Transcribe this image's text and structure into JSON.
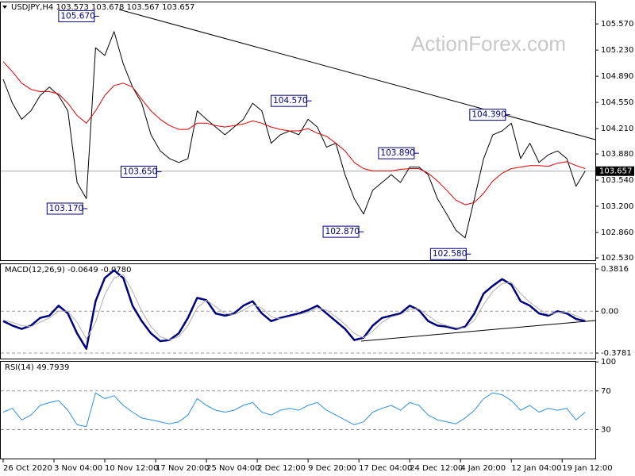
{
  "chart_data": [
    {
      "type": "line",
      "title": "USDJPY,H4 103.573 103.678 103.567 103.657",
      "watermark": "ActionForex.com",
      "x": [
        0,
        8,
        16,
        24,
        32,
        40,
        48,
        56,
        64,
        72,
        80,
        88,
        96,
        104,
        112,
        120,
        128,
        136,
        144,
        152,
        160,
        168,
        176,
        184,
        192,
        200,
        208,
        216,
        224,
        232,
        240,
        248,
        256,
        264,
        272,
        280,
        288,
        296,
        304,
        312,
        320,
        328,
        336,
        344,
        352,
        360,
        368,
        376,
        384,
        392,
        400,
        408,
        416,
        424,
        432,
        440,
        448,
        456,
        464,
        472,
        480,
        488,
        496,
        504
      ],
      "xlim": [
        -2.75,
        512.7
      ],
      "xticks": [
        {
          "value": 0,
          "label": "26 Oct 2020"
        },
        {
          "value": 44,
          "label": "3 Nov 04:00"
        },
        {
          "value": 88,
          "label": "10 Nov 12:00"
        },
        {
          "value": 132,
          "label": "17 Nov 20:00"
        },
        {
          "value": 176,
          "label": "25 Nov 04:00"
        },
        {
          "value": 220,
          "label": "2 Dec 12:00"
        },
        {
          "value": 264,
          "label": "9 Dec 20:00"
        },
        {
          "value": 308,
          "label": "17 Dec 04:00"
        },
        {
          "value": 352,
          "label": "24 Dec 12:00"
        },
        {
          "value": 396,
          "label": "4 Jan 20:00"
        },
        {
          "value": 440,
          "label": "12 Jan 04:00"
        },
        {
          "value": 484,
          "label": "19 Jan 12:00"
        }
      ],
      "ylim": [
        102.5,
        105.86
      ],
      "yticks": [
        {
          "value": 105.57,
          "label": "105.570"
        },
        {
          "value": 105.23,
          "label": "105.230"
        },
        {
          "value": 104.89,
          "label": "104.890"
        },
        {
          "value": 104.55,
          "label": "104.550"
        },
        {
          "value": 104.21,
          "label": "104.210"
        },
        {
          "value": 103.88,
          "label": "103.880"
        },
        {
          "value": 103.54,
          "label": "103.540"
        },
        {
          "value": 103.2,
          "label": "103.200"
        },
        {
          "value": 102.86,
          "label": "102.860"
        },
        {
          "value": 102.53,
          "label": "102.530"
        }
      ],
      "last_price": 103.657,
      "series": [
        {
          "color": "#000000",
          "width": 1,
          "values": [
            104.85,
            104.54,
            104.33,
            104.44,
            104.64,
            104.75,
            104.64,
            104.44,
            103.51,
            103.3,
            105.26,
            105.16,
            105.47,
            105.05,
            104.75,
            104.54,
            104.13,
            103.92,
            103.82,
            103.77,
            103.82,
            104.44,
            104.33,
            104.23,
            104.13,
            104.23,
            104.33,
            104.54,
            104.44,
            104.02,
            104.13,
            104.18,
            104.13,
            104.33,
            104.23,
            103.97,
            104.02,
            103.61,
            103.3,
            103.1,
            103.41,
            103.51,
            103.61,
            103.51,
            103.71,
            103.71,
            103.61,
            103.3,
            103.1,
            102.89,
            102.79,
            103.3,
            103.82,
            104.13,
            104.18,
            104.28,
            103.82,
            104.02,
            103.77,
            103.87,
            103.92,
            103.82,
            103.46,
            103.66
          ]
        },
        {
          "color": "#e00000",
          "width": 1,
          "values": [
            105.08,
            104.95,
            104.8,
            104.72,
            104.69,
            104.69,
            104.66,
            104.54,
            104.38,
            104.28,
            104.44,
            104.64,
            104.77,
            104.8,
            104.75,
            104.59,
            104.44,
            104.33,
            104.25,
            104.2,
            104.2,
            104.28,
            104.28,
            104.25,
            104.23,
            104.25,
            104.27,
            104.31,
            104.28,
            104.23,
            104.2,
            104.18,
            104.18,
            104.21,
            104.15,
            104.11,
            104.02,
            103.92,
            103.77,
            103.69,
            103.66,
            103.66,
            103.66,
            103.68,
            103.69,
            103.69,
            103.63,
            103.53,
            103.41,
            103.28,
            103.22,
            103.25,
            103.37,
            103.53,
            103.63,
            103.69,
            103.71,
            103.73,
            103.73,
            103.72,
            103.76,
            103.78,
            103.73,
            103.69
          ]
        }
      ],
      "annotations": [
        {
          "x": 81,
          "value": 105.67,
          "label": "105.670"
        },
        {
          "x": 71,
          "value": 103.17,
          "label": "103.170"
        },
        {
          "x": 135,
          "value": 103.65,
          "label": "103.650"
        },
        {
          "x": 265,
          "value": 104.57,
          "label": "104.570"
        },
        {
          "x": 310,
          "value": 102.87,
          "label": "102.870"
        },
        {
          "x": 358,
          "value": 103.89,
          "label": "103.890"
        },
        {
          "x": 403,
          "value": 102.58,
          "label": "102.580"
        },
        {
          "x": 437,
          "value": 104.39,
          "label": "104.390"
        }
      ]
    },
    {
      "type": "line",
      "title": "MACD(12,26,9) -0.0649 -0.0780",
      "ylim": [
        -0.428,
        0.432
      ],
      "yticks": [
        0.3816,
        {
          "value": 0,
          "label": "0.00"
        },
        -0.3781
      ],
      "series": [
        {
          "color": "#00007f",
          "width": 2.5,
          "values": [
            -0.09,
            -0.13,
            -0.16,
            -0.13,
            -0.06,
            -0.04,
            0.05,
            -0.02,
            -0.2,
            -0.34,
            0.09,
            0.3,
            0.37,
            0.3,
            0.05,
            -0.09,
            -0.2,
            -0.27,
            -0.26,
            -0.2,
            -0.06,
            0.12,
            0.1,
            -0.02,
            -0.04,
            -0.02,
            0.05,
            0.09,
            -0.02,
            -0.09,
            -0.06,
            -0.04,
            -0.02,
            0.01,
            0.05,
            -0.02,
            -0.09,
            -0.16,
            -0.26,
            -0.24,
            -0.13,
            -0.06,
            -0.04,
            -0.02,
            0.05,
            0.01,
            -0.09,
            -0.13,
            -0.14,
            -0.16,
            -0.14,
            -0.02,
            0.16,
            0.23,
            0.29,
            0.24,
            0.09,
            0.05,
            -0.02,
            -0.04,
            0,
            -0.02,
            -0.07,
            -0.09
          ]
        },
        {
          "color": "#b0b0b0",
          "width": 1,
          "values": [
            -0.08,
            -0.1,
            -0.13,
            -0.14,
            -0.1,
            -0.06,
            0,
            0,
            -0.1,
            -0.25,
            -0.1,
            0.15,
            0.3,
            0.33,
            0.18,
            0,
            -0.14,
            -0.23,
            -0.26,
            -0.23,
            -0.13,
            0.03,
            0.1,
            0.04,
            -0.02,
            -0.03,
            0.01,
            0.06,
            0.03,
            -0.05,
            -0.07,
            -0.05,
            -0.03,
            -0.01,
            0.03,
            0.01,
            -0.05,
            -0.12,
            -0.2,
            -0.24,
            -0.18,
            -0.1,
            -0.05,
            -0.03,
            0.02,
            0.02,
            -0.04,
            -0.1,
            -0.13,
            -0.15,
            -0.15,
            -0.08,
            0.06,
            0.18,
            0.25,
            0.26,
            0.16,
            0.08,
            0.02,
            -0.03,
            -0.01,
            -0.01,
            -0.04,
            -0.08
          ]
        }
      ]
    },
    {
      "type": "line",
      "title": "RSI(14) 49.7939",
      "ylim": [
        0,
        101
      ],
      "yticks": [
        100,
        70,
        30
      ],
      "series": [
        {
          "color": "#2f8fdf",
          "width": 1,
          "values": [
            48,
            52,
            40,
            45,
            55,
            58,
            60,
            50,
            35,
            33,
            68,
            62,
            65,
            55,
            48,
            42,
            40,
            38,
            36,
            38,
            45,
            62,
            55,
            50,
            48,
            50,
            55,
            58,
            48,
            45,
            50,
            52,
            50,
            55,
            58,
            50,
            45,
            40,
            35,
            38,
            48,
            52,
            55,
            50,
            58,
            55,
            45,
            40,
            38,
            36,
            42,
            50,
            62,
            68,
            66,
            60,
            50,
            55,
            48,
            52,
            50,
            52,
            40,
            48
          ]
        }
      ]
    }
  ]
}
